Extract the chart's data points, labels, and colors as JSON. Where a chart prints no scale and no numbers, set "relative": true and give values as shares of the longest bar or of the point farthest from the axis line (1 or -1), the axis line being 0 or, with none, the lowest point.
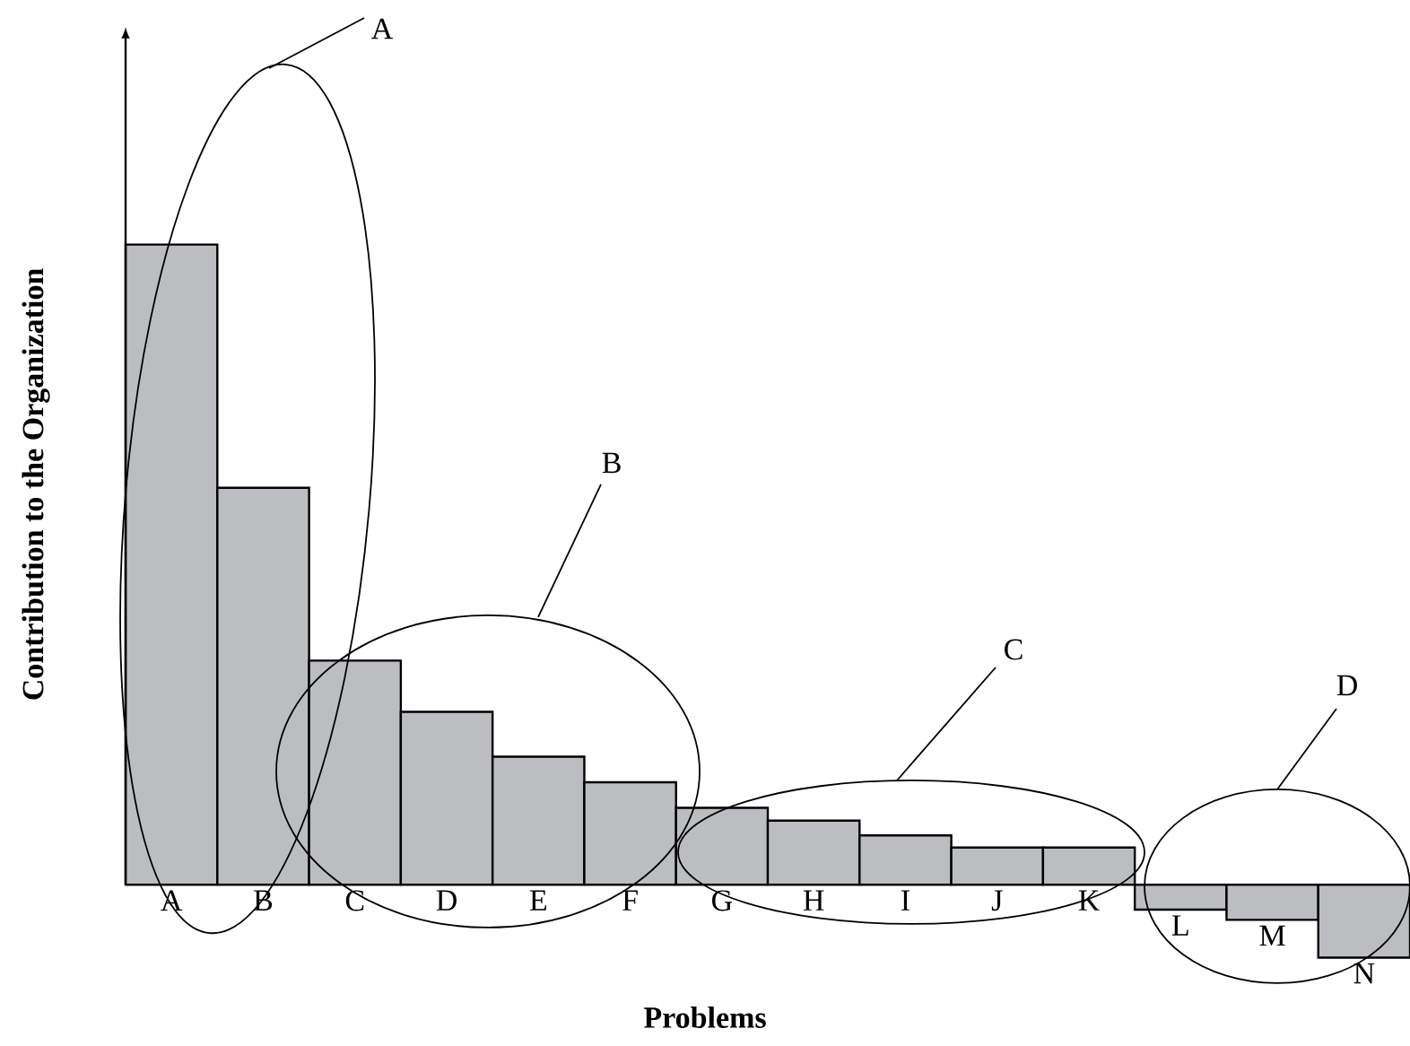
{
  "chart_data": {
    "type": "bar",
    "relative": true,
    "xlabel": "Problems",
    "ylabel": "Contribution to the Organization",
    "color": "#bcbdc0",
    "categories": [
      "A",
      "B",
      "C",
      "D",
      "E",
      "F",
      "G",
      "H",
      "I",
      "J",
      "K",
      "L",
      "M",
      "N"
    ],
    "values": [
      1,
      0.62,
      0.35,
      0.27,
      0.2,
      0.16,
      0.12,
      0.1,
      0.077,
      0.058,
      0.058,
      -0.039,
      -0.055,
      -0.114
    ],
    "annotations": [
      "A",
      "B",
      "C",
      "D"
    ]
  }
}
